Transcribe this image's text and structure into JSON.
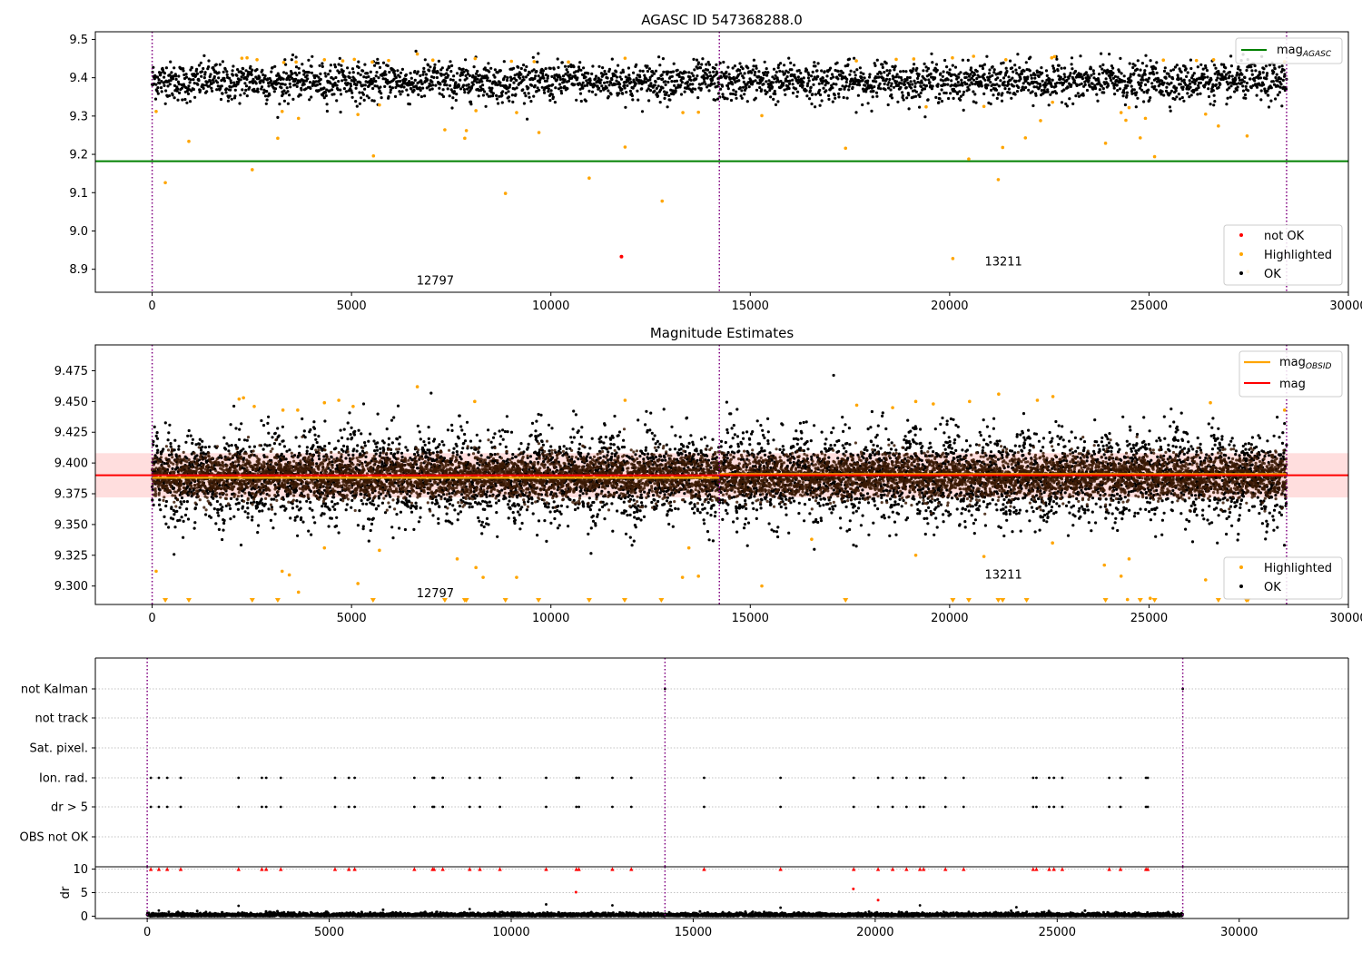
{
  "chart_data": [
    {
      "type": "scatter",
      "title": "AGASC ID 547368288.0",
      "xlim": [
        -1425,
        30000
      ],
      "ylim": [
        8.84,
        9.52
      ],
      "x_ticks": [
        "0",
        "5000",
        "10000",
        "15000",
        "20000",
        "25000",
        "30000"
      ],
      "y_ticks": [
        "8.9",
        "9.0",
        "9.1",
        "9.2",
        "9.3",
        "9.4",
        "9.5"
      ],
      "obsid_boundaries": [
        0,
        14225,
        28450
      ],
      "obsid_labels": [
        {
          "text": "12797",
          "x": 7100,
          "y": 8.86
        },
        {
          "text": "13211",
          "x": 21350,
          "y": 8.91
        }
      ],
      "lines": [
        {
          "name": "mag_AGASC",
          "color": "#008000",
          "y": 9.182,
          "x": [
            -1425,
            30000
          ]
        }
      ],
      "series": [
        {
          "name": "not OK",
          "color": "#ff0000",
          "points": [
            [
              11770,
              8.933
            ]
          ]
        },
        {
          "name": "Highlighted",
          "color": "#ffa500",
          "points": [
            [
              100,
              9.312
            ],
            [
              330,
              9.126
            ],
            [
              920,
              9.234
            ],
            [
              2510,
              9.16
            ],
            [
              3150,
              9.242
            ],
            [
              3260,
              9.312
            ],
            [
              3670,
              9.294
            ],
            [
              5160,
              9.304
            ],
            [
              5550,
              9.196
            ],
            [
              5700,
              9.329
            ],
            [
              7340,
              9.264
            ],
            [
              7840,
              9.242
            ],
            [
              7880,
              9.262
            ],
            [
              8120,
              9.314
            ],
            [
              8860,
              9.098
            ],
            [
              9140,
              9.309
            ],
            [
              9700,
              9.257
            ],
            [
              10960,
              9.138
            ],
            [
              11860,
              9.219
            ],
            [
              12790,
              9.078
            ],
            [
              13310,
              9.309
            ],
            [
              13700,
              9.31
            ],
            [
              15290,
              9.301
            ],
            [
              17390,
              9.216
            ],
            [
              19410,
              9.324
            ],
            [
              20080,
              8.928
            ],
            [
              20480,
              9.188
            ],
            [
              20860,
              9.325
            ],
            [
              21220,
              9.134
            ],
            [
              21330,
              9.218
            ],
            [
              21900,
              9.243
            ],
            [
              22280,
              9.288
            ],
            [
              22580,
              9.336
            ],
            [
              23910,
              9.229
            ],
            [
              24300,
              9.309
            ],
            [
              24420,
              9.289
            ],
            [
              24500,
              9.322
            ],
            [
              24780,
              9.243
            ],
            [
              24910,
              9.294
            ],
            [
              25140,
              9.194
            ],
            [
              26420,
              9.305
            ],
            [
              26740,
              9.274
            ],
            [
              27460,
              9.248
            ],
            [
              27480,
              8.894
            ],
            [
              2250,
              9.451
            ],
            [
              2380,
              9.452
            ],
            [
              2630,
              9.447
            ],
            [
              3300,
              9.44
            ],
            [
              3610,
              9.441
            ],
            [
              4320,
              9.447
            ],
            [
              4780,
              9.444
            ],
            [
              5070,
              9.448
            ],
            [
              5520,
              9.441
            ],
            [
              5930,
              9.445
            ],
            [
              6650,
              9.462
            ],
            [
              7040,
              9.446
            ],
            [
              8100,
              9.45
            ],
            [
              9010,
              9.443
            ],
            [
              9580,
              9.442
            ],
            [
              10440,
              9.441
            ],
            [
              11860,
              9.451
            ],
            [
              17660,
              9.444
            ],
            [
              18660,
              9.448
            ],
            [
              19100,
              9.449
            ],
            [
              20070,
              9.452
            ],
            [
              20600,
              9.456
            ],
            [
              21410,
              9.447
            ],
            [
              22560,
              9.452
            ],
            [
              22630,
              9.455
            ],
            [
              25360,
              9.446
            ],
            [
              26190,
              9.445
            ],
            [
              26620,
              9.447
            ],
            [
              28400,
              9.442
            ]
          ]
        },
        {
          "name": "OK",
          "color": "#000000",
          "band_mean": 9.39,
          "band_halfwidth": 0.045,
          "x_range": [
            0,
            28450
          ]
        }
      ],
      "legends": [
        [
          "mag_AGASC"
        ],
        [
          "not OK",
          "Highlighted",
          "OK"
        ]
      ]
    },
    {
      "type": "scatter",
      "title": "Magnitude Estimates",
      "xlim": [
        -1425,
        30000
      ],
      "ylim": [
        9.285,
        9.496
      ],
      "x_ticks": [
        "0",
        "5000",
        "10000",
        "15000",
        "20000",
        "25000",
        "30000"
      ],
      "y_ticks": [
        "9.300",
        "9.325",
        "9.350",
        "9.375",
        "9.400",
        "9.425",
        "9.450",
        "9.475"
      ],
      "obsid_boundaries": [
        0,
        14225,
        28450
      ],
      "obsid_labels": [
        {
          "text": "12797",
          "x": 7100,
          "y": 9.291
        },
        {
          "text": "13211",
          "x": 21350,
          "y": 9.306
        }
      ],
      "lines": [
        {
          "name": "mag_OBSID",
          "color": "#ffa500",
          "segments": [
            {
              "x": [
                0,
                14225
              ],
              "y": 9.388
            },
            {
              "x": [
                14225,
                28450
              ],
              "y": 9.391
            }
          ]
        },
        {
          "name": "mag",
          "color": "#ff0000",
          "y": 9.39,
          "x": [
            -1425,
            30000
          ],
          "band": [
            9.372,
            9.408
          ]
        }
      ],
      "series": [
        {
          "name": "Highlighted",
          "color": "#ffa500",
          "points": [
            [
              100,
              9.312
            ],
            [
              3260,
              9.312
            ],
            [
              3440,
              9.309
            ],
            [
              3670,
              9.295
            ],
            [
              4320,
              9.331
            ],
            [
              5160,
              9.302
            ],
            [
              5700,
              9.329
            ],
            [
              7650,
              9.322
            ],
            [
              8120,
              9.315
            ],
            [
              8300,
              9.307
            ],
            [
              9140,
              9.307
            ],
            [
              13300,
              9.307
            ],
            [
              13460,
              9.331
            ],
            [
              13700,
              9.308
            ],
            [
              15290,
              9.3
            ],
            [
              16540,
              9.338
            ],
            [
              19150,
              9.325
            ],
            [
              20860,
              9.324
            ],
            [
              22580,
              9.335
            ],
            [
              23880,
              9.317
            ],
            [
              24300,
              9.308
            ],
            [
              24500,
              9.322
            ],
            [
              24460,
              9.289
            ],
            [
              25030,
              9.29
            ],
            [
              26420,
              9.305
            ],
            [
              2180,
              9.452
            ],
            [
              2290,
              9.453
            ],
            [
              2560,
              9.446
            ],
            [
              3280,
              9.443
            ],
            [
              3650,
              9.443
            ],
            [
              4320,
              9.449
            ],
            [
              4680,
              9.451
            ],
            [
              5040,
              9.446
            ],
            [
              6650,
              9.462
            ],
            [
              8090,
              9.45
            ],
            [
              11860,
              9.451
            ],
            [
              17670,
              9.447
            ],
            [
              18570,
              9.445
            ],
            [
              19150,
              9.45
            ],
            [
              19590,
              9.448
            ],
            [
              20500,
              9.45
            ],
            [
              21230,
              9.456
            ],
            [
              22200,
              9.451
            ],
            [
              22590,
              9.454
            ],
            [
              26540,
              9.449
            ],
            [
              28400,
              9.443
            ]
          ],
          "below_range_x": [
            330,
            920,
            2510,
            3150,
            5540,
            7340,
            7840,
            7880,
            8860,
            9690,
            10960,
            11850,
            12770,
            17390,
            20080,
            20480,
            21220,
            21330,
            21930,
            23910,
            24780,
            25140,
            26740,
            27440,
            27480
          ]
        },
        {
          "name": "OK",
          "color": "#000000",
          "band_mean": 9.389,
          "band_halfwidth": 0.045,
          "x_range": [
            0,
            28450
          ]
        }
      ],
      "legends": [
        [
          "mag_OBSID",
          "mag"
        ],
        [
          "Highlighted",
          "OK"
        ]
      ]
    },
    {
      "type": "scatter",
      "title": "",
      "xlim": [
        -1425,
        33000
      ],
      "categories": [
        "not Kalman",
        "not track",
        "Sat. pixel.",
        "Ion. rad.",
        "dr > 5",
        "OBS not OK"
      ],
      "obsid_boundaries": [
        0,
        14225,
        28450
      ],
      "flag_x": [
        100,
        320,
        550,
        920,
        2510,
        3150,
        3270,
        3670,
        5160,
        5540,
        5700,
        7340,
        7840,
        7880,
        8120,
        8860,
        9140,
        9690,
        10960,
        11790,
        11860,
        12780,
        13300,
        15300,
        17400,
        19410,
        20080,
        20480,
        20860,
        21230,
        21330,
        21930,
        22430,
        24340,
        24430,
        24780,
        24910,
        25140,
        26430,
        26740,
        27440,
        27490
      ],
      "flag_rows": [
        "Ion. rad.",
        "dr > 5"
      ]
    },
    {
      "type": "scatter",
      "title": "",
      "ylabel": "dr",
      "xlim": [
        -1425,
        33000
      ],
      "ylim": [
        -0.5,
        10.5
      ],
      "x_ticks": [
        "0",
        "5000",
        "10000",
        "15000",
        "20000",
        "25000",
        "30000"
      ],
      "y_ticks": [
        "0",
        "5",
        "10"
      ],
      "obsid_boundaries": [
        0,
        14225,
        28450
      ],
      "series": [
        {
          "name": "dr > 5",
          "color": "#ff0000",
          "points": [
            [
              11780,
              5.1
            ],
            [
              19400,
              5.8
            ],
            [
              20080,
              3.4
            ]
          ],
          "clipped_at_10_x": [
            100,
            320,
            550,
            920,
            2510,
            3150,
            3270,
            3670,
            5160,
            5540,
            5700,
            7340,
            7840,
            7880,
            8120,
            8860,
            9140,
            9690,
            10960,
            11790,
            11860,
            12780,
            13300,
            15300,
            17400,
            19410,
            20080,
            20480,
            20860,
            21230,
            21330,
            21930,
            22430,
            24340,
            24430,
            24780,
            24910,
            25140,
            26430,
            26740,
            27440,
            27490
          ]
        },
        {
          "name": "OK",
          "color": "#000000",
          "band_mean": 0.4,
          "band_halfwidth": 0.7,
          "x_range": [
            0,
            28450
          ],
          "outliers": [
            [
              2510,
              2.2
            ],
            [
              10960,
              2.5
            ],
            [
              12780,
              2.3
            ],
            [
              21230,
              2.3
            ],
            [
              8860,
              1.5
            ],
            [
              17400,
              1.8
            ],
            [
              23880,
              1.9
            ],
            [
              320,
              1.2
            ]
          ]
        }
      ]
    }
  ]
}
